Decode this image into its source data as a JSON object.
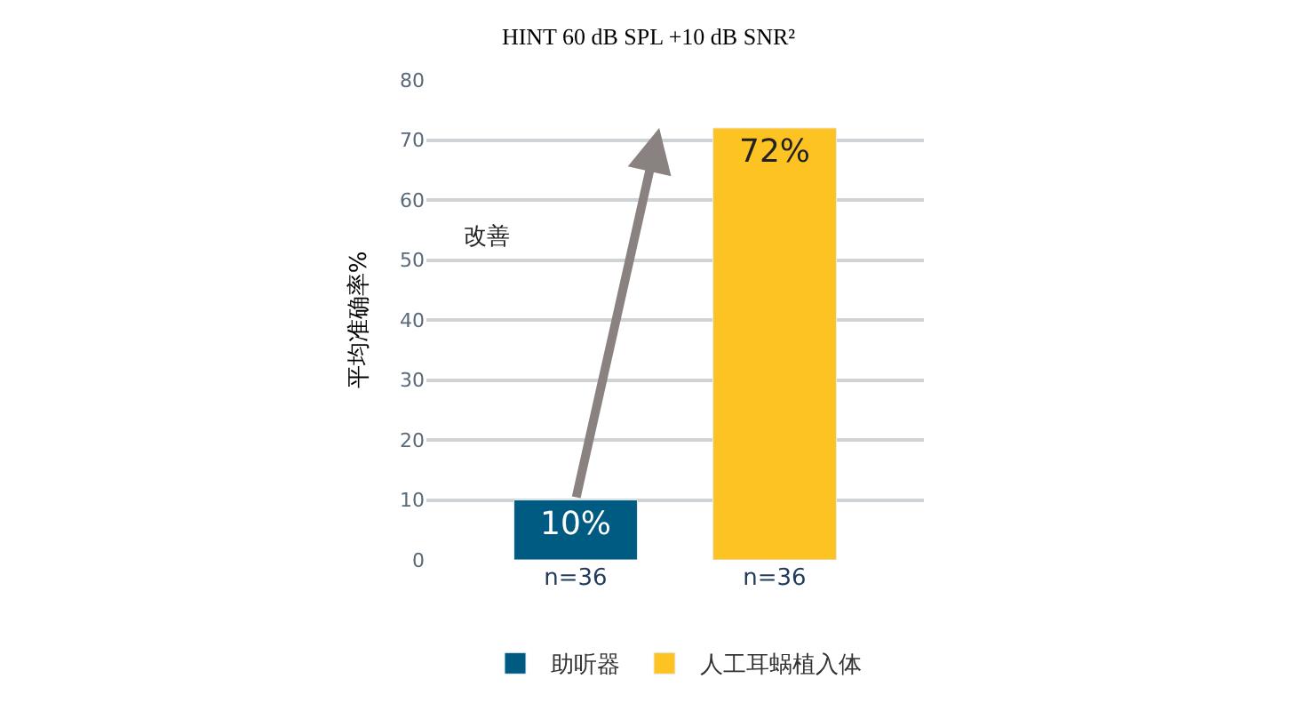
{
  "chart_data": {
    "type": "bar",
    "title": "HINT 60 dB SPL +10 dB SNR²",
    "ylabel": "平均准确率%",
    "categories": [
      "n=36",
      "n=36"
    ],
    "series": [
      {
        "name": "助听器",
        "color": "#005b82",
        "values": [
          10,
          null
        ],
        "value_labels": [
          "10%",
          null
        ]
      },
      {
        "name": "人工耳蜗植入体",
        "color": "#fdc323",
        "values": [
          null,
          72
        ],
        "value_labels": [
          null,
          "72%"
        ]
      }
    ],
    "annotations": [
      "改善"
    ],
    "ylim": [
      0,
      80
    ],
    "yticks": [
      0,
      10,
      20,
      30,
      40,
      50,
      60,
      70,
      80
    ],
    "grid": "y",
    "legend": "bottom"
  }
}
